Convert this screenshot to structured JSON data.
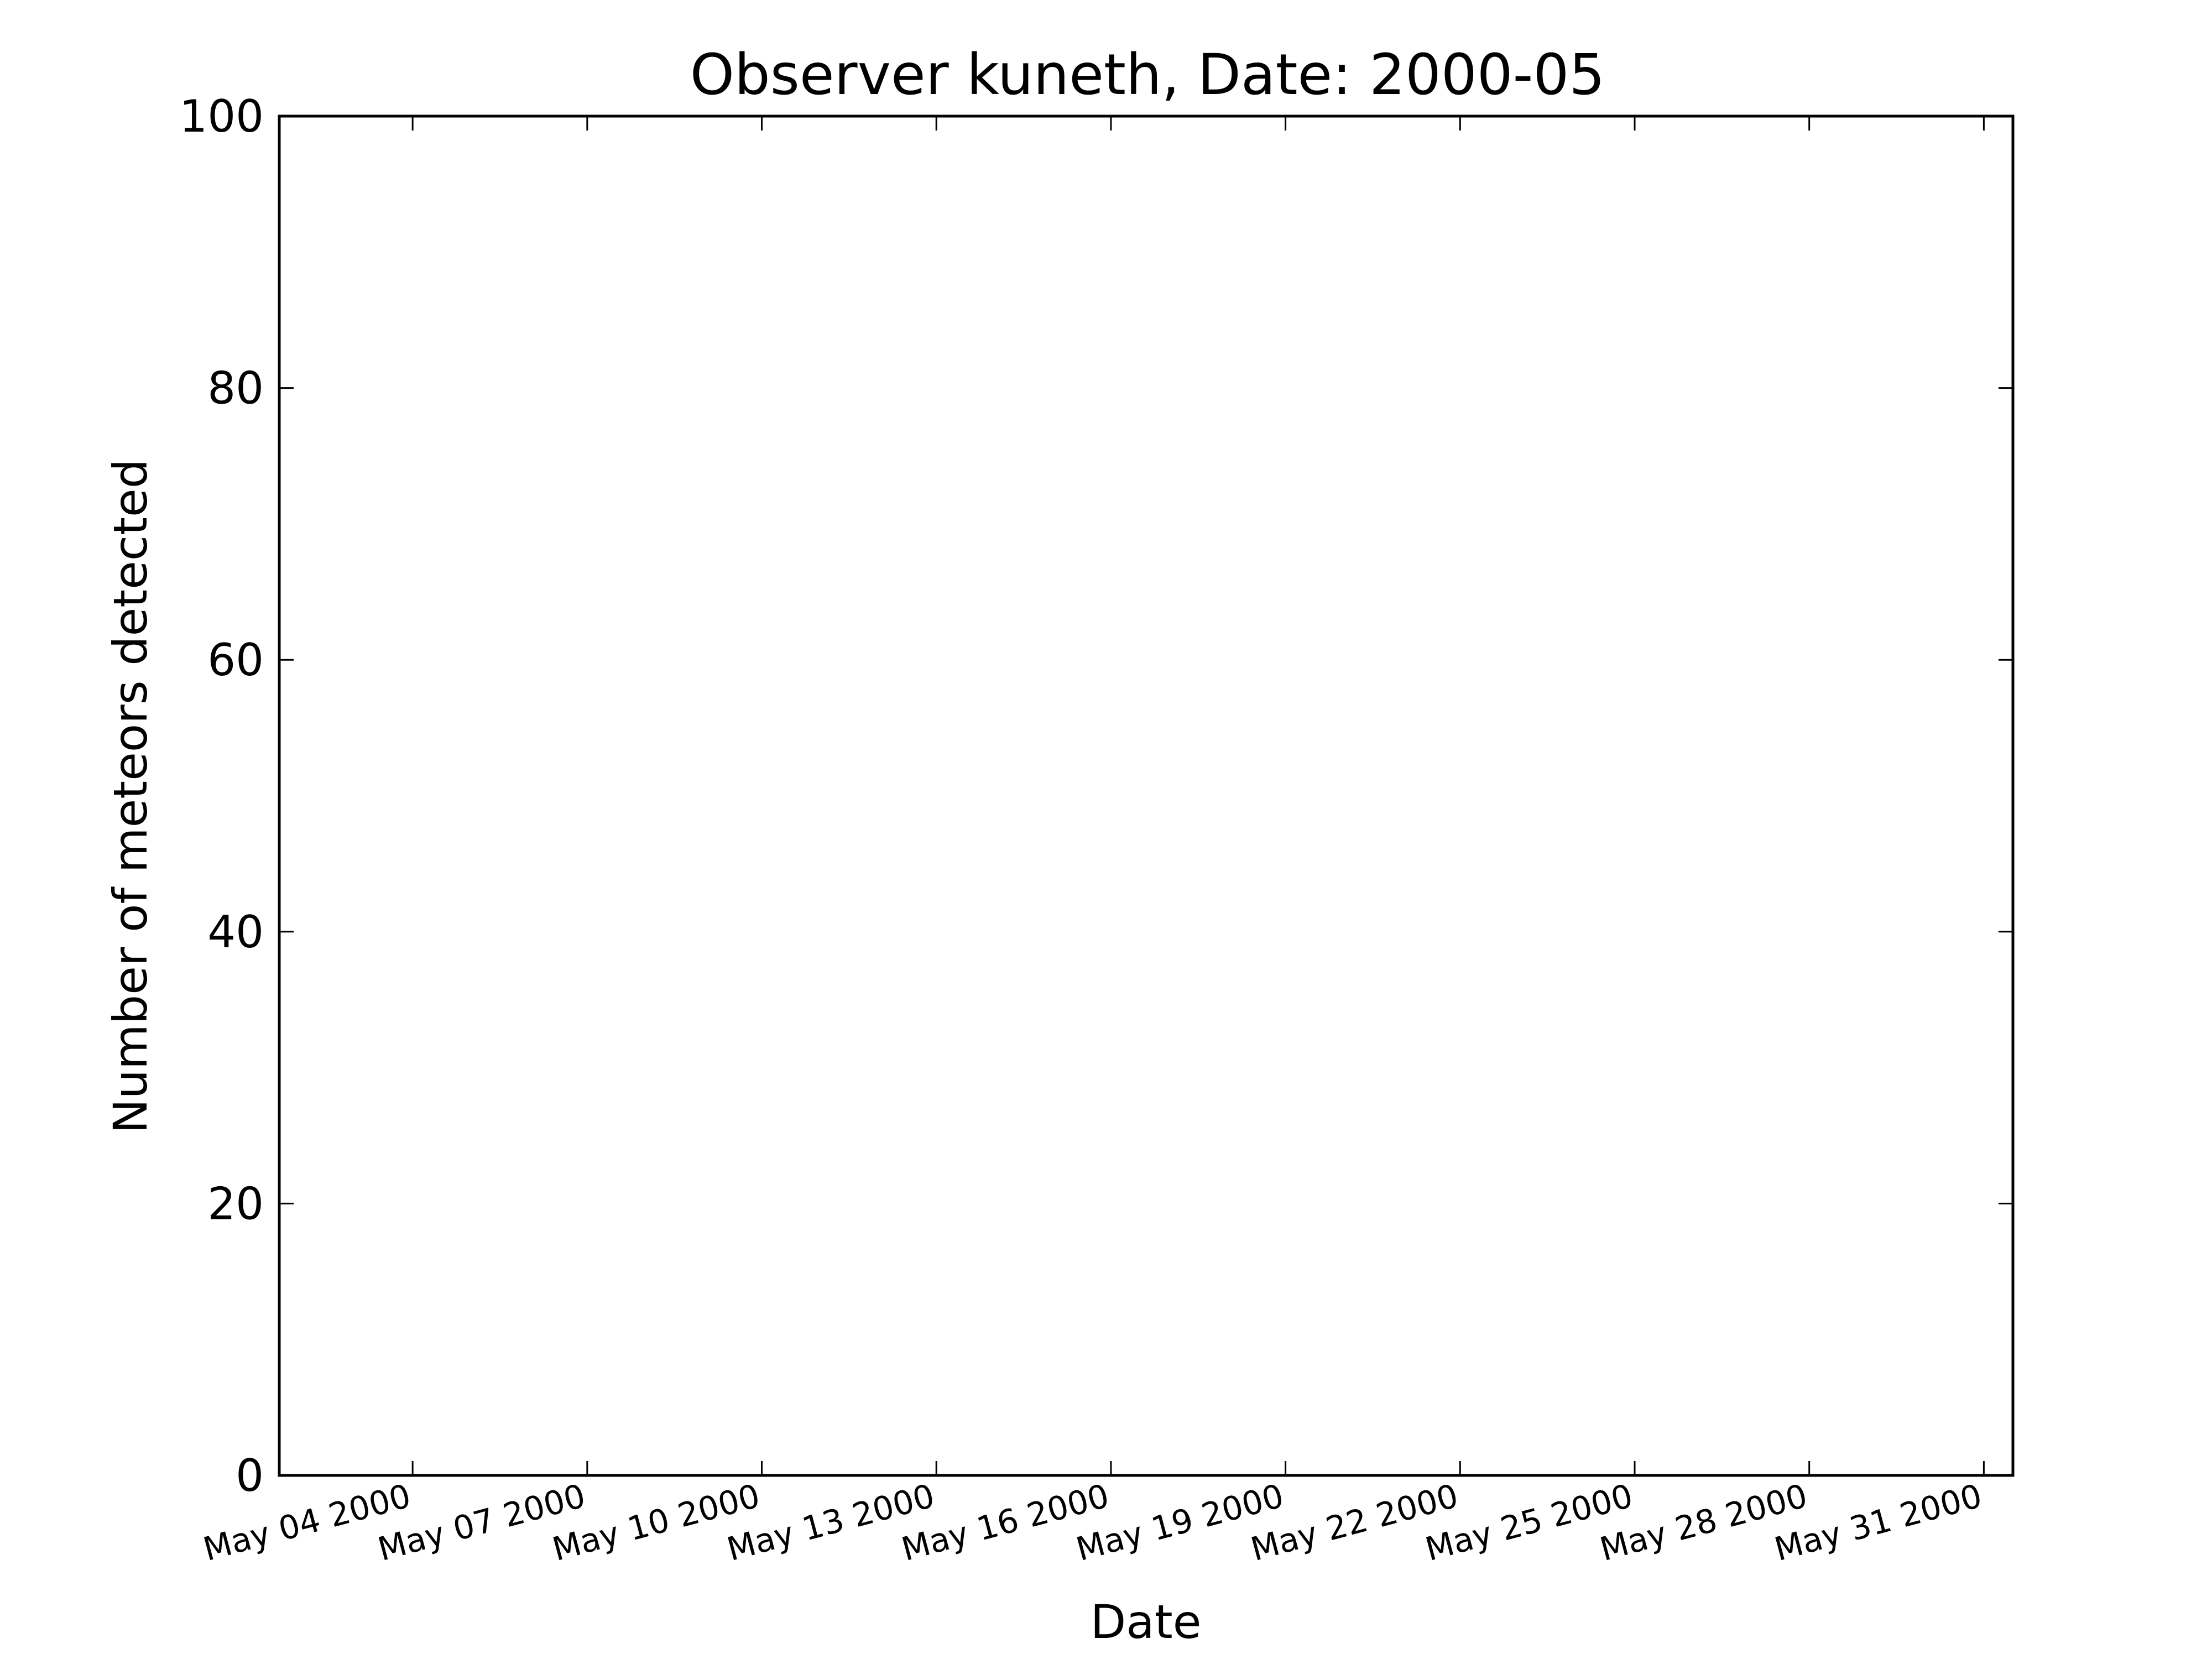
{
  "chart_data": {
    "type": "line",
    "title": "Observer kuneth, Date: 2000-05",
    "xlabel": "Date",
    "ylabel": "Number of meteors detected",
    "xlim": [
      "2000-05-01T17:00",
      "2000-05-31T12:00"
    ],
    "ylim": [
      0,
      100
    ],
    "x_ticks": [
      {
        "date": "2000-05-04",
        "label": "May 04 2000"
      },
      {
        "date": "2000-05-07",
        "label": "May 07 2000"
      },
      {
        "date": "2000-05-10",
        "label": "May 10 2000"
      },
      {
        "date": "2000-05-13",
        "label": "May 13 2000"
      },
      {
        "date": "2000-05-16",
        "label": "May 16 2000"
      },
      {
        "date": "2000-05-19",
        "label": "May 19 2000"
      },
      {
        "date": "2000-05-22",
        "label": "May 22 2000"
      },
      {
        "date": "2000-05-25",
        "label": "May 25 2000"
      },
      {
        "date": "2000-05-28",
        "label": "May 28 2000"
      },
      {
        "date": "2000-05-31",
        "label": "May 31 2000"
      }
    ],
    "y_ticks": [
      {
        "value": 0,
        "label": "0"
      },
      {
        "value": 20,
        "label": "20"
      },
      {
        "value": 40,
        "label": "40"
      },
      {
        "value": 60,
        "label": "60"
      },
      {
        "value": 80,
        "label": "80"
      },
      {
        "value": 100,
        "label": "100"
      }
    ],
    "series": [],
    "grid": false,
    "colors": {
      "axes": "#000000",
      "background": "#ffffff"
    }
  }
}
